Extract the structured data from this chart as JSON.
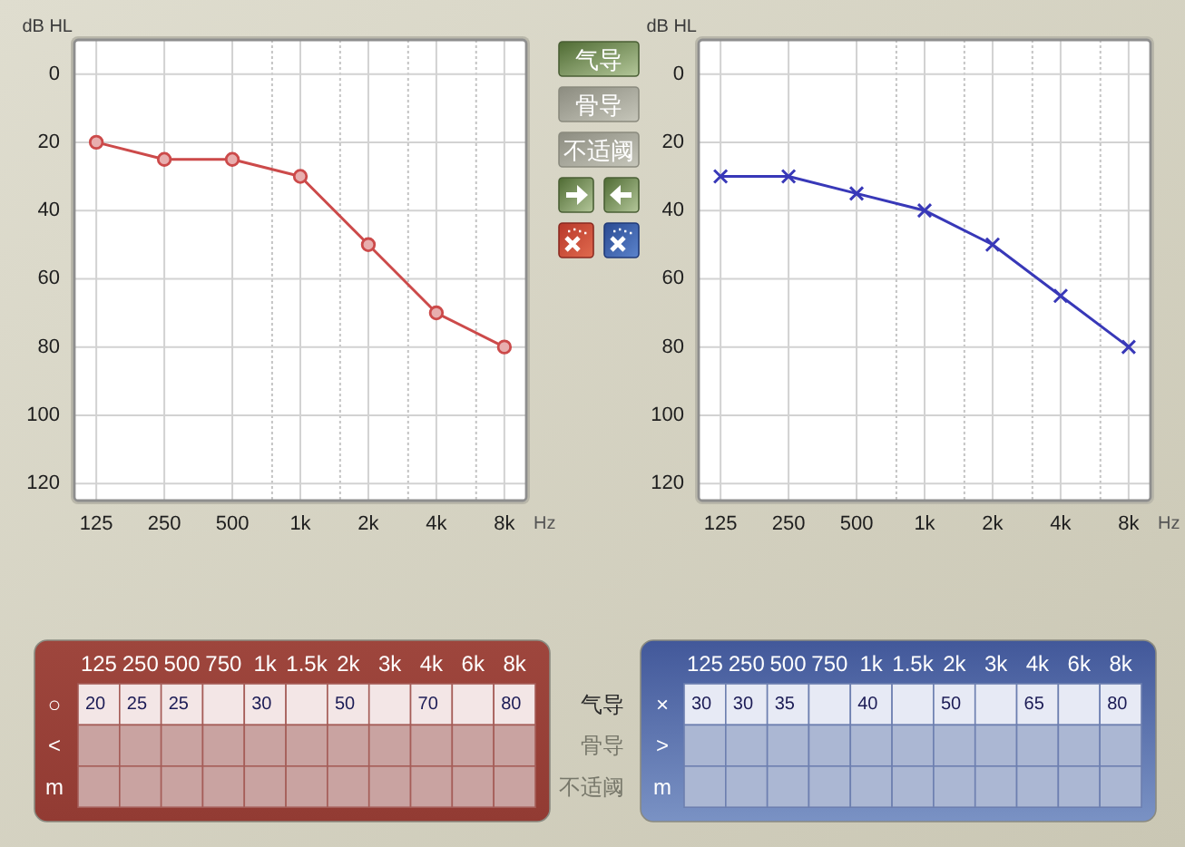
{
  "chart_data": [
    {
      "type": "line",
      "xlabel": "Hz",
      "ylabel": "dB HL",
      "log": "x",
      "xlim": [
        100,
        10000
      ],
      "ylim": [
        125,
        -10
      ],
      "xticks": [
        125,
        250,
        500,
        {
          "value": 750,
          "label": null
        },
        {
          "value": 1000,
          "label": "1k"
        },
        {
          "value": 1500,
          "label": null
        },
        {
          "value": 2000,
          "label": "2k"
        },
        {
          "value": 3000,
          "label": null
        },
        {
          "value": 4000,
          "label": "4k"
        },
        {
          "value": 6000,
          "label": null
        },
        {
          "value": 8000,
          "label": "8k"
        }
      ],
      "yticks": [
        0,
        20,
        40,
        60,
        80,
        100,
        120
      ],
      "grid": true,
      "marker": "circle",
      "line_style": "solid",
      "x": [
        125,
        250,
        500,
        1000,
        2000,
        4000,
        8000
      ],
      "series": [
        {
          "color": "#cc4a4a",
          "values": [
            20,
            25,
            25,
            30,
            50,
            70,
            80
          ]
        }
      ]
    },
    {
      "type": "other",
      "annotations": [
        "气导",
        "骨导",
        "不适阈"
      ]
    },
    {
      "type": "line",
      "xlabel": "Hz",
      "ylabel": "dB HL",
      "log": "x",
      "xlim": [
        100,
        10000
      ],
      "ylim": [
        125,
        -10
      ],
      "xticks": [
        125,
        250,
        500,
        {
          "value": 750,
          "label": null
        },
        {
          "value": 1000,
          "label": "1k"
        },
        {
          "value": 1500,
          "label": null
        },
        {
          "value": 2000,
          "label": "2k"
        },
        {
          "value": 3000,
          "label": null
        },
        {
          "value": 4000,
          "label": "4k"
        },
        {
          "value": 6000,
          "label": null
        },
        {
          "value": 8000,
          "label": "8k"
        }
      ],
      "yticks": [
        0,
        20,
        40,
        60,
        80,
        100,
        120
      ],
      "grid": true,
      "marker": "cross",
      "line_style": "solid",
      "x": [
        125,
        250,
        500,
        1000,
        2000,
        4000,
        8000
      ],
      "series": [
        {
          "color": "#3838b8",
          "values": [
            30,
            30,
            35,
            40,
            50,
            65,
            80
          ]
        }
      ]
    },
    {
      "type": "heatmap",
      "categories": [
        "125",
        "250",
        "500",
        "750",
        "1k",
        "1.5k",
        "2k",
        "3k",
        "4k",
        "6k",
        "8k"
      ],
      "y_categories": [
        "○",
        "<",
        "m"
      ],
      "y2_categories": [
        "气导",
        "骨导",
        "不适阈"
      ],
      "data_labels": true,
      "cells": [
        [
          20,
          25,
          25,
          null,
          30,
          null,
          50,
          null,
          70,
          null,
          80
        ],
        [
          null,
          null,
          null,
          null,
          null,
          null,
          null,
          null,
          null,
          null,
          null
        ],
        [
          null,
          null,
          null,
          null,
          null,
          null,
          null,
          null,
          null,
          null,
          null
        ]
      ]
    },
    {
      "type": "heatmap",
      "categories": [
        "125",
        "250",
        "500",
        "750",
        "1k",
        "1.5k",
        "2k",
        "3k",
        "4k",
        "6k",
        "8k"
      ],
      "y_categories": [
        "×",
        ">",
        "m"
      ],
      "data_labels": true,
      "cells": [
        [
          30,
          30,
          35,
          null,
          40,
          null,
          50,
          null,
          65,
          null,
          80
        ],
        [
          null,
          null,
          null,
          null,
          null,
          null,
          null,
          null,
          null,
          null,
          null
        ],
        [
          null,
          null,
          null,
          null,
          null,
          null,
          null,
          null,
          null,
          null,
          null
        ]
      ]
    }
  ]
}
